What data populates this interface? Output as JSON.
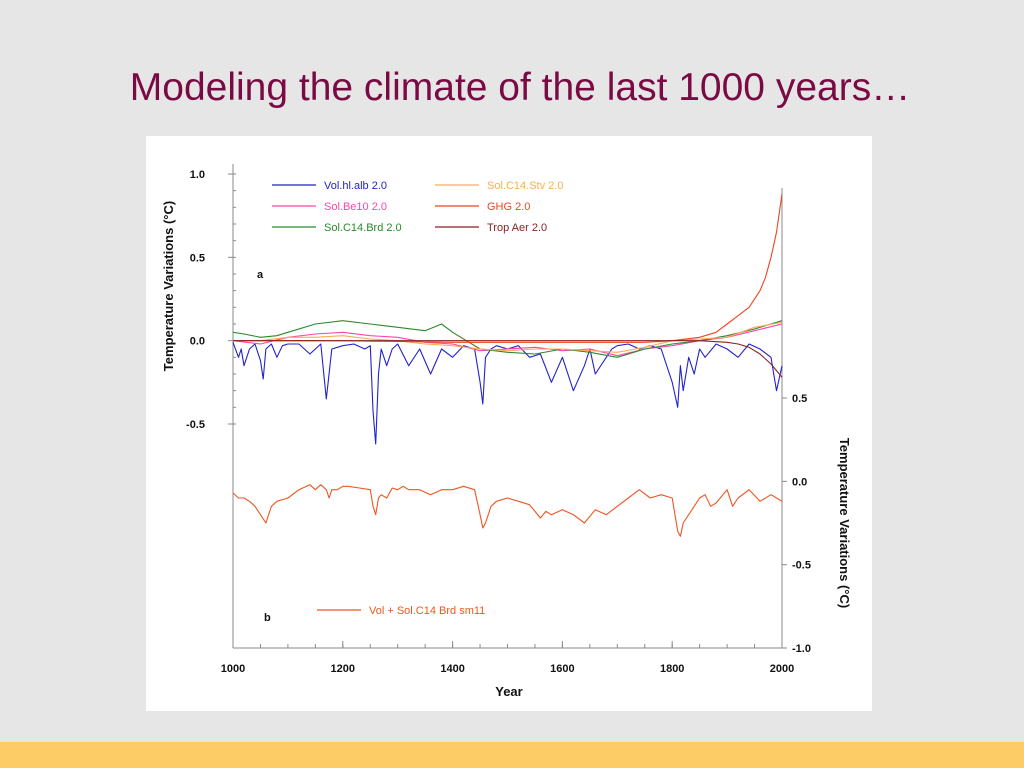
{
  "slide": {
    "title": "Modeling the climate of the last 1000 years…",
    "title_color": "#7a0a43",
    "background": "#e6e6e6",
    "footer_color": "#fecc66"
  },
  "chart_data": [
    {
      "type": "line",
      "panel_label": "a",
      "ylabel": "Temperature Variations (°C)",
      "y_axis_side": "left",
      "ylim": [
        -0.5,
        1.0
      ],
      "yticks": [
        "1.0",
        "0.5",
        "0.0",
        "-0.5"
      ],
      "ytick_values": [
        1.0,
        0.5,
        0.0,
        -0.5
      ],
      "xlim": [
        1000,
        2000
      ],
      "legend_placement": "top-left",
      "series": [
        {
          "name": "Vol.hl.alb  2.0",
          "color": "#2222cc",
          "x": [
            1000,
            1010,
            1015,
            1020,
            1030,
            1040,
            1050,
            1055,
            1060,
            1070,
            1080,
            1090,
            1100,
            1120,
            1140,
            1160,
            1170,
            1180,
            1200,
            1220,
            1240,
            1250,
            1255,
            1260,
            1265,
            1270,
            1280,
            1290,
            1300,
            1320,
            1340,
            1360,
            1380,
            1400,
            1420,
            1440,
            1450,
            1455,
            1460,
            1470,
            1480,
            1500,
            1520,
            1540,
            1560,
            1580,
            1600,
            1620,
            1640,
            1650,
            1660,
            1680,
            1690,
            1700,
            1720,
            1740,
            1760,
            1780,
            1800,
            1810,
            1815,
            1820,
            1830,
            1840,
            1850,
            1860,
            1880,
            1900,
            1920,
            1940,
            1960,
            1980,
            1990,
            2000
          ],
          "values": [
            -0.01,
            -0.1,
            -0.05,
            -0.15,
            -0.05,
            -0.02,
            -0.12,
            -0.23,
            -0.05,
            -0.02,
            -0.1,
            -0.03,
            -0.02,
            -0.02,
            -0.08,
            -0.02,
            -0.35,
            -0.05,
            -0.03,
            -0.02,
            -0.05,
            -0.03,
            -0.42,
            -0.62,
            -0.2,
            -0.05,
            -0.15,
            -0.05,
            -0.02,
            -0.15,
            -0.05,
            -0.2,
            -0.05,
            -0.1,
            -0.03,
            -0.05,
            -0.25,
            -0.38,
            -0.1,
            -0.05,
            -0.03,
            -0.05,
            -0.03,
            -0.1,
            -0.08,
            -0.25,
            -0.1,
            -0.3,
            -0.15,
            -0.05,
            -0.2,
            -0.1,
            -0.05,
            -0.03,
            -0.02,
            -0.05,
            -0.03,
            -0.05,
            -0.25,
            -0.4,
            -0.15,
            -0.3,
            -0.1,
            -0.2,
            -0.05,
            -0.1,
            -0.02,
            -0.05,
            -0.1,
            -0.02,
            -0.05,
            -0.1,
            -0.3,
            -0.15
          ]
        },
        {
          "name": "Sol.Be10  2.0",
          "color": "#ff44aa",
          "x": [
            1000,
            1050,
            1100,
            1150,
            1200,
            1250,
            1300,
            1350,
            1400,
            1450,
            1500,
            1550,
            1600,
            1650,
            1700,
            1750,
            1800,
            1850,
            1900,
            1950,
            2000
          ],
          "values": [
            0.0,
            -0.02,
            0.02,
            0.04,
            0.05,
            0.03,
            0.02,
            -0.01,
            -0.02,
            -0.06,
            -0.05,
            -0.04,
            -0.06,
            -0.05,
            -0.09,
            -0.05,
            -0.03,
            0.0,
            0.02,
            0.06,
            0.1
          ]
        },
        {
          "name": "Sol.C14.Brd  2.0",
          "color": "#2a8a2a",
          "x": [
            1000,
            1020,
            1050,
            1080,
            1100,
            1150,
            1200,
            1250,
            1300,
            1350,
            1380,
            1400,
            1450,
            1500,
            1550,
            1600,
            1650,
            1700,
            1750,
            1800,
            1850,
            1900,
            1950,
            2000
          ],
          "values": [
            0.05,
            0.04,
            0.02,
            0.03,
            0.05,
            0.1,
            0.12,
            0.1,
            0.08,
            0.06,
            0.1,
            0.05,
            -0.05,
            -0.07,
            -0.08,
            -0.05,
            -0.07,
            -0.1,
            -0.05,
            -0.02,
            0.0,
            0.03,
            0.07,
            0.12
          ]
        },
        {
          "name": "Sol.C14.Stv  2.0",
          "color": "#ffaa55",
          "x": [
            1000,
            1050,
            1100,
            1150,
            1200,
            1250,
            1300,
            1350,
            1400,
            1450,
            1500,
            1550,
            1600,
            1650,
            1700,
            1750,
            1800,
            1850,
            1900,
            1950,
            2000
          ],
          "values": [
            0.0,
            0.0,
            0.02,
            0.02,
            0.03,
            0.01,
            0.0,
            -0.02,
            -0.03,
            -0.05,
            -0.06,
            -0.05,
            -0.05,
            -0.06,
            -0.07,
            -0.04,
            0.0,
            0.01,
            0.02,
            0.08,
            0.11
          ]
        },
        {
          "name": "GHG  2.0",
          "color": "#ee4422",
          "x": [
            1000,
            1200,
            1400,
            1600,
            1750,
            1800,
            1850,
            1880,
            1900,
            1920,
            1940,
            1960,
            1970,
            1980,
            1990,
            2000
          ],
          "values": [
            0.0,
            0.0,
            -0.01,
            -0.01,
            -0.01,
            0.0,
            0.02,
            0.05,
            0.1,
            0.15,
            0.2,
            0.3,
            0.38,
            0.5,
            0.65,
            0.88
          ]
        },
        {
          "name": "Trop Aer  2.0",
          "color": "#882222",
          "x": [
            1000,
            1100,
            1200,
            1300,
            1400,
            1500,
            1600,
            1700,
            1800,
            1850,
            1900,
            1920,
            1940,
            1960,
            1980,
            2000
          ],
          "values": [
            0.0,
            0.0,
            0.0,
            0.0,
            0.0,
            0.0,
            0.0,
            0.0,
            0.0,
            0.0,
            -0.01,
            -0.02,
            -0.04,
            -0.08,
            -0.14,
            -0.22
          ]
        }
      ]
    },
    {
      "type": "line",
      "panel_label": "b",
      "xlabel": "Year",
      "ylabel": "Temperature Variations (°C)",
      "y_axis_side": "right",
      "ylim": [
        -1.0,
        0.5
      ],
      "yticks": [
        "0.5",
        "0.0",
        "-0.5",
        "-1.0"
      ],
      "ytick_values": [
        0.5,
        0.0,
        -0.5,
        -1.0
      ],
      "xlim": [
        1000,
        2000
      ],
      "xticks": [
        "1000",
        "1200",
        "1400",
        "1600",
        "1800",
        "2000"
      ],
      "xtick_values": [
        1000,
        1200,
        1400,
        1600,
        1800,
        2000
      ],
      "legend_placement": "bottom-left",
      "series": [
        {
          "name": "Vol + Sol.C14 Brd sm11",
          "color": "#ee5522",
          "x": [
            1000,
            1010,
            1020,
            1030,
            1040,
            1050,
            1060,
            1070,
            1080,
            1100,
            1120,
            1140,
            1150,
            1160,
            1170,
            1175,
            1180,
            1190,
            1200,
            1210,
            1230,
            1250,
            1255,
            1260,
            1265,
            1270,
            1280,
            1290,
            1300,
            1310,
            1320,
            1340,
            1360,
            1380,
            1400,
            1420,
            1440,
            1450,
            1455,
            1460,
            1470,
            1480,
            1500,
            1520,
            1540,
            1560,
            1570,
            1580,
            1600,
            1620,
            1640,
            1660,
            1680,
            1700,
            1720,
            1740,
            1760,
            1780,
            1800,
            1810,
            1815,
            1820,
            1830,
            1840,
            1850,
            1860,
            1870,
            1880,
            1900,
            1910,
            1920,
            1940,
            1960,
            1980,
            1990,
            2000
          ],
          "values": [
            -0.07,
            -0.1,
            -0.1,
            -0.12,
            -0.15,
            -0.2,
            -0.25,
            -0.15,
            -0.12,
            -0.1,
            -0.05,
            -0.02,
            -0.05,
            -0.02,
            -0.05,
            -0.1,
            -0.05,
            -0.05,
            -0.03,
            -0.03,
            -0.04,
            -0.05,
            -0.15,
            -0.2,
            -0.1,
            -0.08,
            -0.1,
            -0.04,
            -0.05,
            -0.03,
            -0.05,
            -0.05,
            -0.08,
            -0.05,
            -0.05,
            -0.03,
            -0.05,
            -0.2,
            -0.28,
            -0.25,
            -0.15,
            -0.12,
            -0.1,
            -0.12,
            -0.14,
            -0.22,
            -0.18,
            -0.2,
            -0.17,
            -0.2,
            -0.25,
            -0.17,
            -0.2,
            -0.15,
            -0.1,
            -0.05,
            -0.1,
            -0.08,
            -0.1,
            -0.3,
            -0.33,
            -0.25,
            -0.2,
            -0.15,
            -0.1,
            -0.08,
            -0.15,
            -0.13,
            -0.05,
            -0.15,
            -0.1,
            -0.05,
            -0.12,
            -0.08,
            -0.1,
            -0.12
          ]
        }
      ]
    }
  ]
}
